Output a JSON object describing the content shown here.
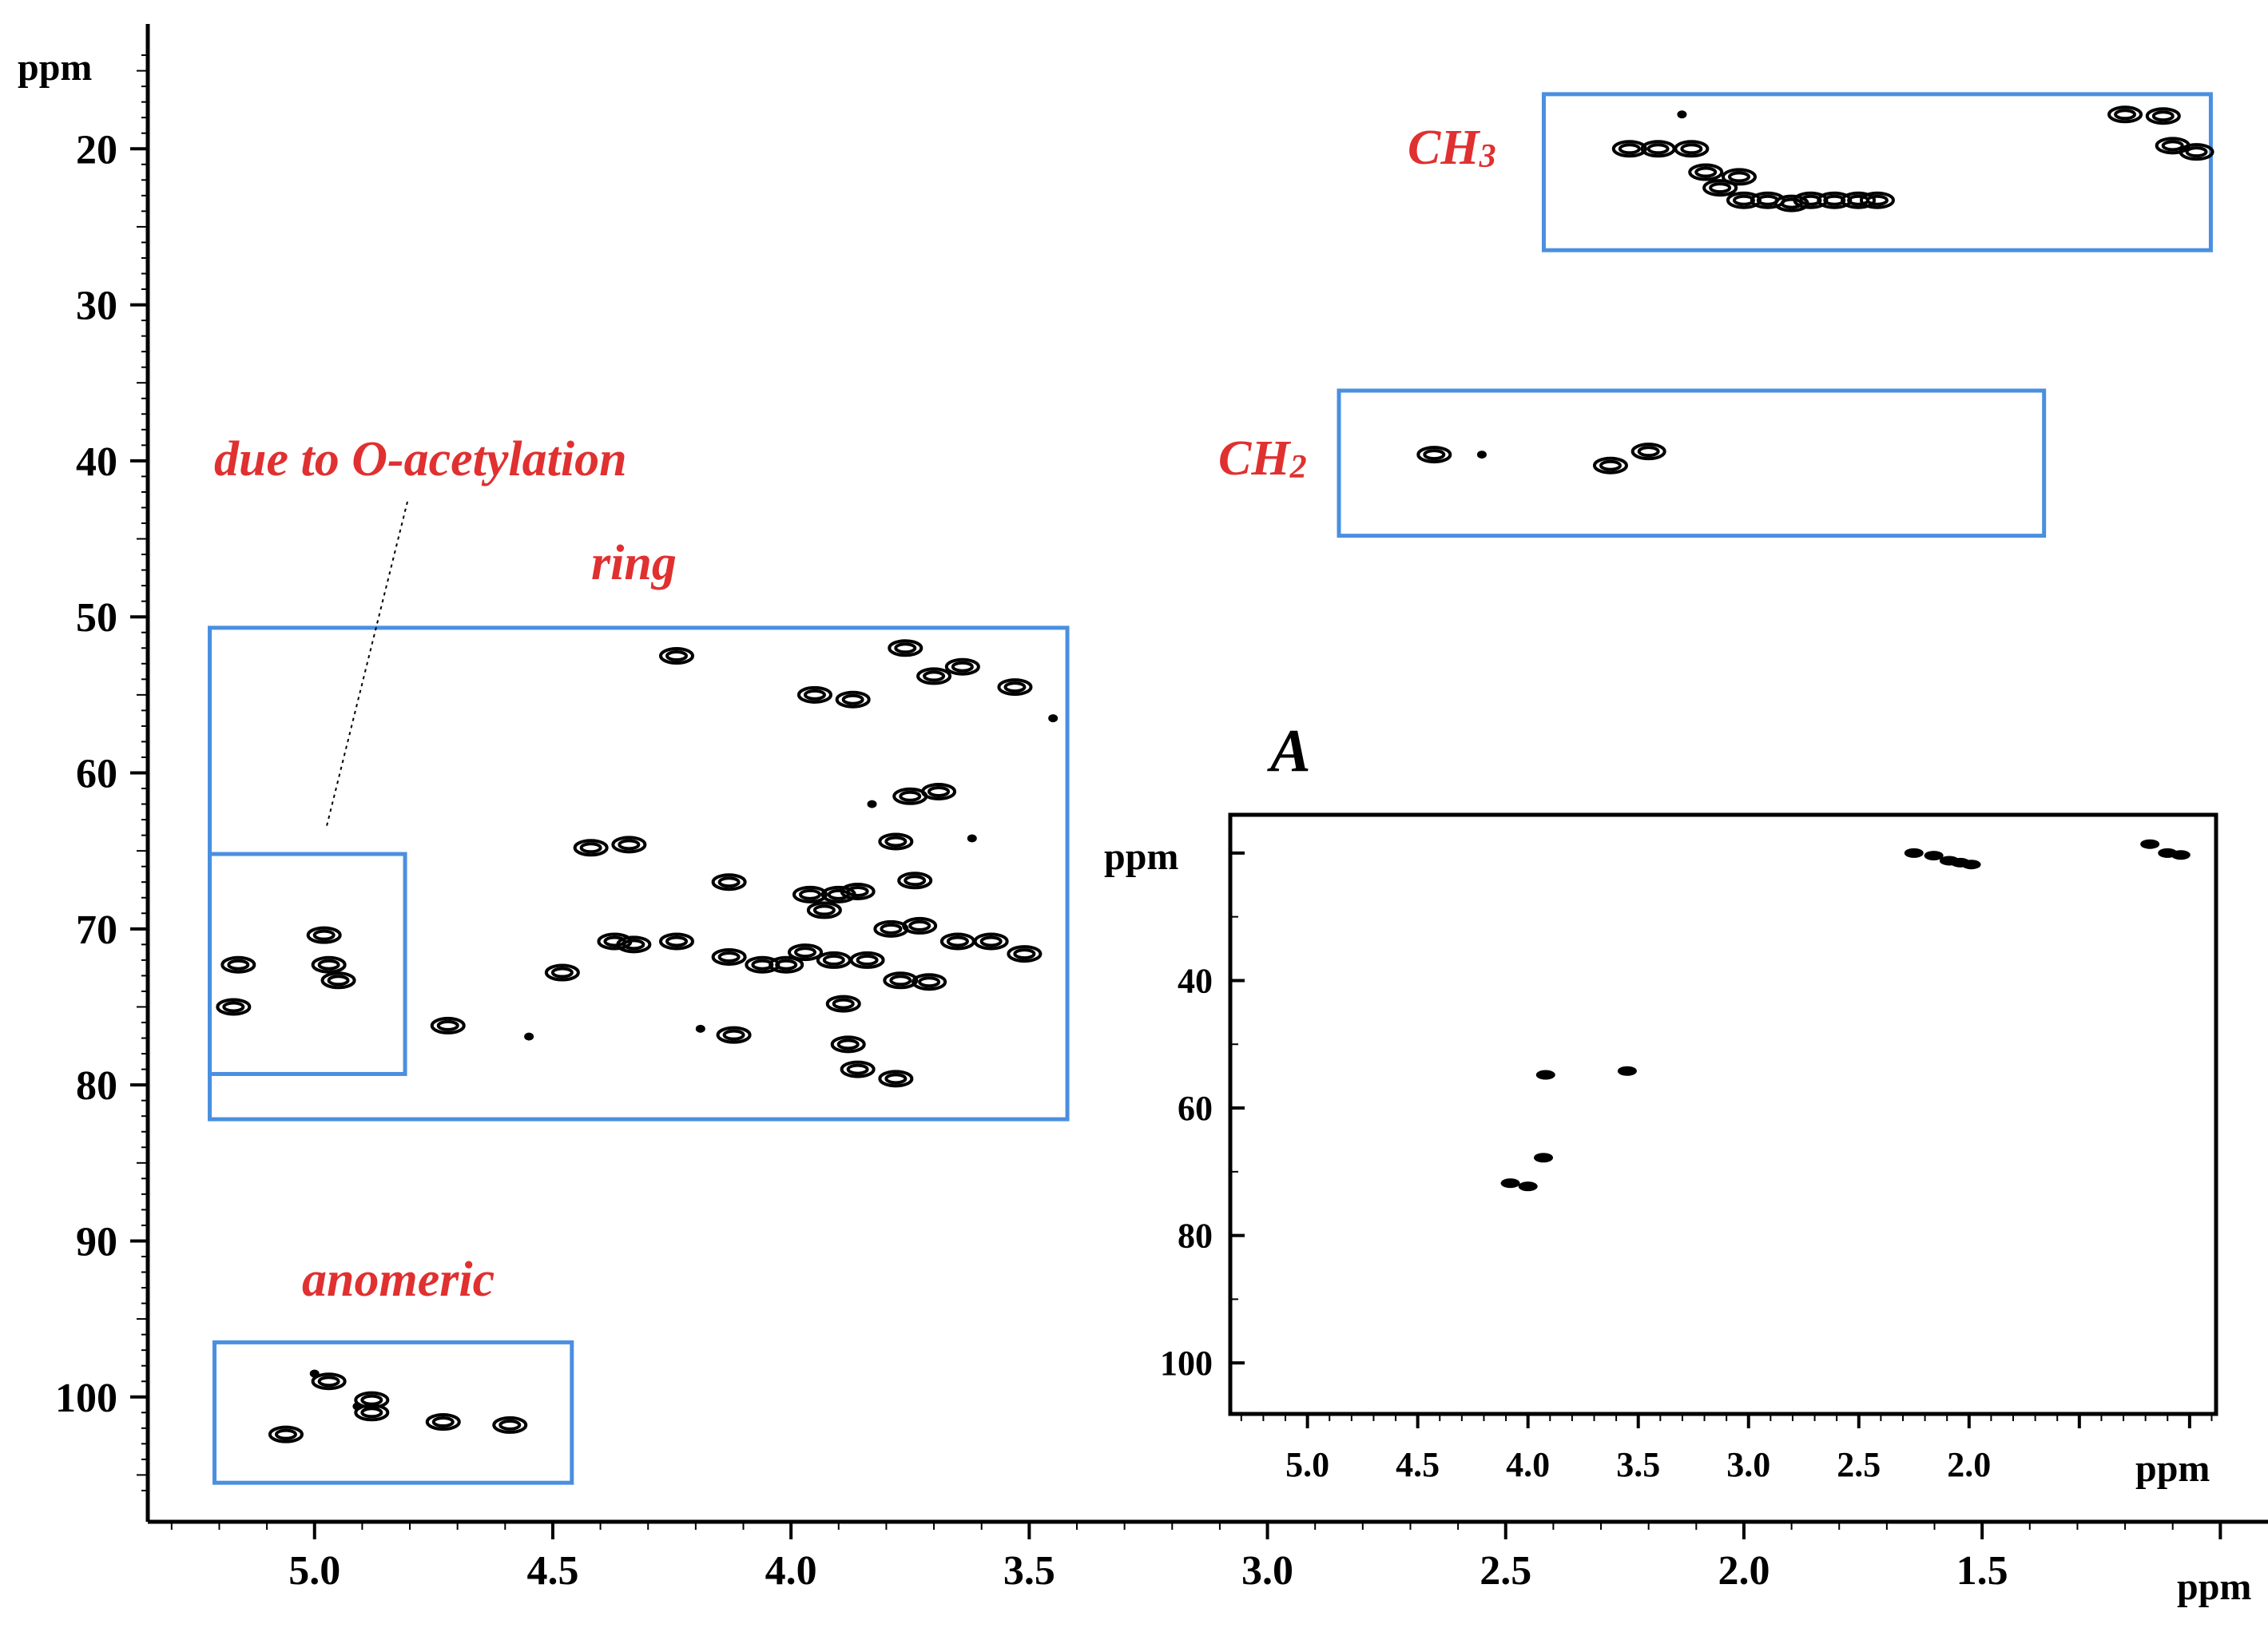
{
  "chart_data": [
    {
      "type": "scatter",
      "subtype": "2D HSQC NMR contour plot",
      "title": "",
      "xlabel": "ppm",
      "ylabel": "ppm",
      "xlim": [
        5.35,
        0.9
      ],
      "ylim": [
        108,
        12
      ],
      "xticks": [
        "5.0",
        "4.5",
        "4.0",
        "3.5",
        "3.0",
        "2.5",
        "2.0",
        "1.5"
      ],
      "xtick_values": [
        5.0,
        4.5,
        4.0,
        3.5,
        3.0,
        2.5,
        2.0,
        1.5
      ],
      "yticks": [
        "20",
        "30",
        "40",
        "50",
        "60",
        "70",
        "80",
        "90",
        "100"
      ],
      "ytick_values": [
        20,
        30,
        40,
        50,
        60,
        70,
        80,
        90,
        100
      ],
      "regions": [
        {
          "label": "CH",
          "sub": "3",
          "x_range": [
            2.42,
            1.02
          ],
          "y_range": [
            16.5,
            26.5
          ]
        },
        {
          "label": "CH",
          "sub": "2",
          "x_range": [
            2.85,
            1.37
          ],
          "y_range": [
            35.5,
            44.8
          ]
        },
        {
          "label": "ring",
          "x_range": [
            5.22,
            3.42
          ],
          "y_range": [
            50.7,
            82.2
          ]
        },
        {
          "label": "",
          "x_range": [
            5.22,
            4.81
          ],
          "y_range": [
            65.2,
            79.3
          ]
        },
        {
          "label": "anomeric",
          "x_range": [
            5.21,
            4.46
          ],
          "y_range": [
            96.5,
            105.5
          ]
        }
      ],
      "annotations": [
        {
          "text": "due to O-acetylation",
          "points_to_region": 3
        }
      ],
      "peaks": [
        {
          "x": 2.13,
          "y": 17.8,
          "f": 1
        },
        {
          "x": 2.24,
          "y": 20.0
        },
        {
          "x": 2.18,
          "y": 20.0
        },
        {
          "x": 2.11,
          "y": 20.0
        },
        {
          "x": 2.08,
          "y": 21.5
        },
        {
          "x": 2.05,
          "y": 22.5
        },
        {
          "x": 2.01,
          "y": 21.8
        },
        {
          "x": 2.0,
          "y": 23.3
        },
        {
          "x": 1.95,
          "y": 23.3
        },
        {
          "x": 1.9,
          "y": 23.5
        },
        {
          "x": 1.86,
          "y": 23.3
        },
        {
          "x": 1.81,
          "y": 23.3
        },
        {
          "x": 1.76,
          "y": 23.3
        },
        {
          "x": 1.72,
          "y": 23.3
        },
        {
          "x": 1.2,
          "y": 17.8
        },
        {
          "x": 1.12,
          "y": 17.9
        },
        {
          "x": 1.1,
          "y": 19.8
        },
        {
          "x": 1.05,
          "y": 20.2
        },
        {
          "x": 2.65,
          "y": 39.6
        },
        {
          "x": 2.55,
          "y": 39.6,
          "f": 1
        },
        {
          "x": 2.28,
          "y": 40.3
        },
        {
          "x": 2.2,
          "y": 39.4
        },
        {
          "x": 4.24,
          "y": 52.5
        },
        {
          "x": 3.95,
          "y": 55.0
        },
        {
          "x": 3.87,
          "y": 55.3
        },
        {
          "x": 3.7,
          "y": 53.8
        },
        {
          "x": 3.53,
          "y": 54.5
        },
        {
          "x": 3.45,
          "y": 56.5,
          "f": 1
        },
        {
          "x": 3.76,
          "y": 52.0
        },
        {
          "x": 3.64,
          "y": 53.2
        },
        {
          "x": 3.75,
          "y": 61.5
        },
        {
          "x": 3.69,
          "y": 61.2
        },
        {
          "x": 3.83,
          "y": 62.0,
          "f": 1
        },
        {
          "x": 3.62,
          "y": 64.2,
          "f": 1
        },
        {
          "x": 4.42,
          "y": 64.8
        },
        {
          "x": 4.34,
          "y": 64.6
        },
        {
          "x": 3.78,
          "y": 64.4
        },
        {
          "x": 4.13,
          "y": 67.0
        },
        {
          "x": 3.96,
          "y": 67.8
        },
        {
          "x": 3.9,
          "y": 67.8
        },
        {
          "x": 3.86,
          "y": 67.6
        },
        {
          "x": 3.74,
          "y": 66.9
        },
        {
          "x": 3.93,
          "y": 68.8
        },
        {
          "x": 4.37,
          "y": 70.8
        },
        {
          "x": 4.33,
          "y": 71.0
        },
        {
          "x": 4.24,
          "y": 70.8
        },
        {
          "x": 4.13,
          "y": 71.8
        },
        {
          "x": 4.06,
          "y": 72.3
        },
        {
          "x": 4.01,
          "y": 72.3
        },
        {
          "x": 3.97,
          "y": 71.5
        },
        {
          "x": 3.91,
          "y": 72.0
        },
        {
          "x": 3.84,
          "y": 72.0
        },
        {
          "x": 3.79,
          "y": 70.0
        },
        {
          "x": 3.73,
          "y": 69.8
        },
        {
          "x": 3.65,
          "y": 70.8
        },
        {
          "x": 3.58,
          "y": 70.8
        },
        {
          "x": 3.51,
          "y": 71.6
        },
        {
          "x": 4.48,
          "y": 72.8
        },
        {
          "x": 3.77,
          "y": 73.3
        },
        {
          "x": 3.71,
          "y": 73.4
        },
        {
          "x": 3.89,
          "y": 74.8
        },
        {
          "x": 4.72,
          "y": 76.2
        },
        {
          "x": 4.12,
          "y": 76.8
        },
        {
          "x": 4.19,
          "y": 76.4,
          "f": 1
        },
        {
          "x": 4.55,
          "y": 76.9,
          "f": 1
        },
        {
          "x": 3.88,
          "y": 77.4
        },
        {
          "x": 3.86,
          "y": 79.0
        },
        {
          "x": 3.78,
          "y": 79.6
        },
        {
          "x": 4.98,
          "y": 70.4
        },
        {
          "x": 5.16,
          "y": 72.3
        },
        {
          "x": 4.97,
          "y": 72.3
        },
        {
          "x": 4.95,
          "y": 73.3
        },
        {
          "x": 5.17,
          "y": 75.0
        },
        {
          "x": 4.97,
          "y": 99.0
        },
        {
          "x": 4.88,
          "y": 100.2
        },
        {
          "x": 4.88,
          "y": 101.0
        },
        {
          "x": 4.73,
          "y": 101.6
        },
        {
          "x": 4.59,
          "y": 101.8
        },
        {
          "x": 5.06,
          "y": 102.4
        },
        {
          "x": 5.0,
          "y": 98.5,
          "f": 1
        },
        {
          "x": 4.91,
          "y": 100.6,
          "f": 1
        }
      ]
    },
    {
      "type": "scatter",
      "subtype": "inset 2D NMR spectrum",
      "title": "A",
      "xlabel": "ppm",
      "ylabel": "ppm",
      "xlim": [
        5.35,
        0.88
      ],
      "ylim": [
        108,
        14
      ],
      "xticks": [
        "5.0",
        "4.5",
        "4.0",
        "3.5",
        "3.0",
        "2.5",
        "2.0"
      ],
      "xtick_values": [
        5.0,
        4.5,
        4.0,
        3.5,
        3.0,
        2.5,
        2.0
      ],
      "yticks": [
        "40",
        "60",
        "80",
        "100"
      ],
      "ytick_values": [
        40,
        60,
        80,
        100
      ],
      "peaks": [
        {
          "x": 2.25,
          "y": 20.0
        },
        {
          "x": 2.16,
          "y": 20.4
        },
        {
          "x": 2.09,
          "y": 21.2
        },
        {
          "x": 2.04,
          "y": 21.5
        },
        {
          "x": 1.99,
          "y": 21.8
        },
        {
          "x": 1.18,
          "y": 18.6
        },
        {
          "x": 1.1,
          "y": 20.0
        },
        {
          "x": 1.04,
          "y": 20.3
        },
        {
          "x": 3.92,
          "y": 54.8
        },
        {
          "x": 3.55,
          "y": 54.2
        },
        {
          "x": 3.93,
          "y": 67.8
        },
        {
          "x": 4.08,
          "y": 71.8
        },
        {
          "x": 4.0,
          "y": 72.3
        }
      ]
    }
  ],
  "labels": {
    "ch3_main": "CH",
    "ch3_sub": "3",
    "ch2_main": "CH",
    "ch2_sub": "2",
    "ring": "ring",
    "anomeric": "anomeric",
    "acetylation": "due to O-acetylation",
    "inset_title": "A",
    "main_y_unit": "ppm",
    "main_x_unit": "ppm",
    "inset_y_unit": "ppm",
    "inset_x_unit": "ppm"
  },
  "colors": {
    "box": "#4a8fe0",
    "label": "#e03030",
    "ink": "#000000"
  }
}
